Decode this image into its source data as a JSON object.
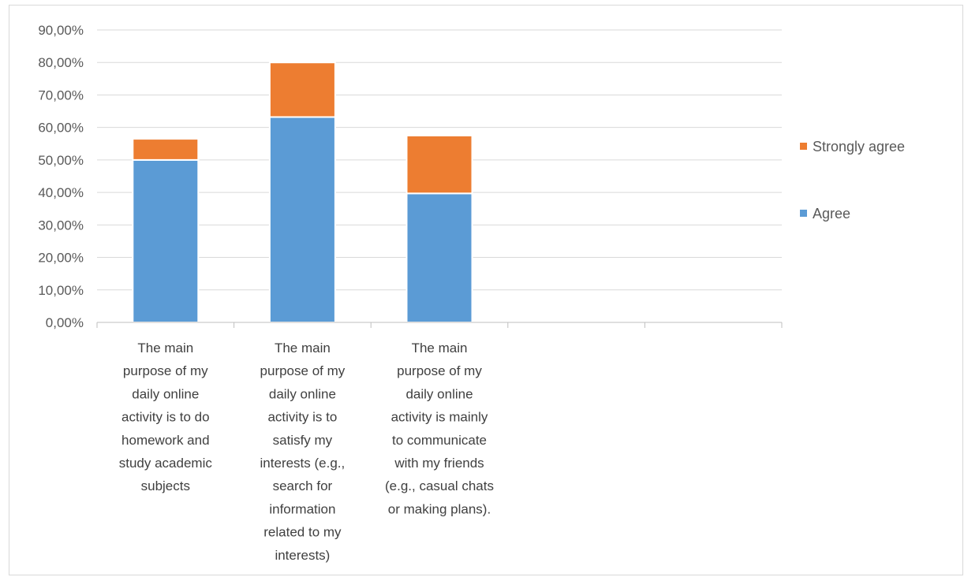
{
  "chart_data": {
    "type": "bar",
    "stacked": true,
    "title": "",
    "xlabel": "",
    "ylabel": "",
    "ylim": [
      0,
      0.9
    ],
    "y_ticks": [
      0,
      0.1,
      0.2,
      0.3,
      0.4,
      0.5,
      0.6,
      0.7,
      0.8,
      0.9
    ],
    "y_tick_labels": [
      "0,00%",
      "10,00%",
      "20,00%",
      "30,00%",
      "40,00%",
      "50,00%",
      "60,00%",
      "70,00%",
      "80,00%",
      "90,00%"
    ],
    "grid": true,
    "legend_position": "right",
    "slot_count": 5,
    "categories": [
      [
        "The main",
        "purpose of my",
        "daily online",
        "activity is to do",
        "homework and",
        "study academic",
        "subjects"
      ],
      [
        "The main",
        "purpose of my",
        "daily online",
        "activity is to",
        "satisfy my",
        "interests (e.g.,",
        "search for",
        "information",
        "related to my",
        "interests)"
      ],
      [
        "The main",
        "purpose of my",
        "daily online",
        "activity is mainly",
        "to communicate",
        "with my friends",
        "(e.g., casual chats",
        "or making plans)."
      ]
    ],
    "series": [
      {
        "name": "Agree",
        "color": "#5b9bd5",
        "values": [
          0.5,
          0.632,
          0.397
        ]
      },
      {
        "name": "Strongly agree",
        "color": "#ed7d31",
        "values": [
          0.065,
          0.168,
          0.178
        ]
      }
    ],
    "legend_order": [
      "Strongly agree",
      "Agree"
    ]
  }
}
